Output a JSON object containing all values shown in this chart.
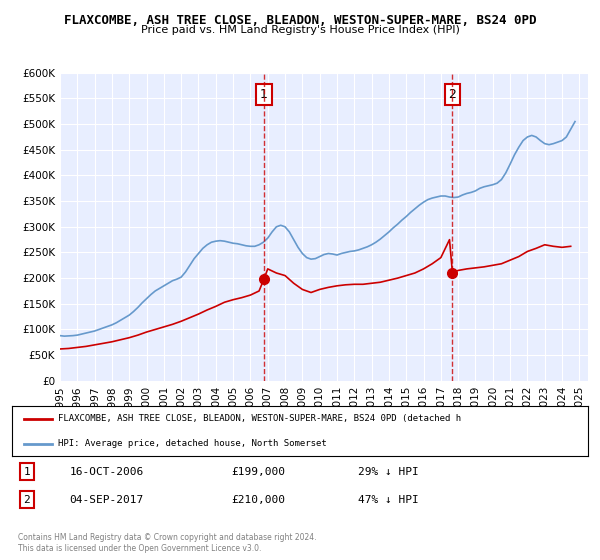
{
  "title": "FLAXCOMBE, ASH TREE CLOSE, BLEADON, WESTON-SUPER-MARE, BS24 0PD",
  "subtitle": "Price paid vs. HM Land Registry's House Price Index (HPI)",
  "background_color": "#f0f4ff",
  "plot_bg_color": "#e8eeff",
  "ylim": [
    0,
    600000
  ],
  "yticks": [
    0,
    50000,
    100000,
    150000,
    200000,
    250000,
    300000,
    350000,
    400000,
    450000,
    500000,
    550000,
    600000
  ],
  "ytick_labels": [
    "£0",
    "£50K",
    "£100K",
    "£150K",
    "£200K",
    "£250K",
    "£300K",
    "£350K",
    "£400K",
    "£450K",
    "£500K",
    "£550K",
    "£600K"
  ],
  "xlim_start": 1995.0,
  "xlim_end": 2025.5,
  "xticks": [
    1995,
    1996,
    1997,
    1998,
    1999,
    2000,
    2001,
    2002,
    2003,
    2004,
    2005,
    2006,
    2007,
    2008,
    2009,
    2010,
    2011,
    2012,
    2013,
    2014,
    2015,
    2016,
    2017,
    2018,
    2019,
    2020,
    2021,
    2022,
    2023,
    2024,
    2025
  ],
  "red_line_color": "#cc0000",
  "blue_line_color": "#6699cc",
  "marker1_x": 2006.79,
  "marker1_y": 199000,
  "marker2_x": 2017.67,
  "marker2_y": 210000,
  "vline1_x": 2006.79,
  "vline2_x": 2017.67,
  "legend_label_red": "FLAXCOMBE, ASH TREE CLOSE, BLEADON, WESTON-SUPER-MARE, BS24 0PD (detached h",
  "legend_label_blue": "HPI: Average price, detached house, North Somerset",
  "annotation1_num": "1",
  "annotation1_date": "16-OCT-2006",
  "annotation1_price": "£199,000",
  "annotation1_hpi": "29% ↓ HPI",
  "annotation2_num": "2",
  "annotation2_date": "04-SEP-2017",
  "annotation2_price": "£210,000",
  "annotation2_hpi": "47% ↓ HPI",
  "footer1": "Contains HM Land Registry data © Crown copyright and database right 2024.",
  "footer2": "This data is licensed under the Open Government Licence v3.0.",
  "hpi_data_x": [
    1995.0,
    1995.25,
    1995.5,
    1995.75,
    1996.0,
    1996.25,
    1996.5,
    1996.75,
    1997.0,
    1997.25,
    1997.5,
    1997.75,
    1998.0,
    1998.25,
    1998.5,
    1998.75,
    1999.0,
    1999.25,
    1999.5,
    1999.75,
    2000.0,
    2000.25,
    2000.5,
    2000.75,
    2001.0,
    2001.25,
    2001.5,
    2001.75,
    2002.0,
    2002.25,
    2002.5,
    2002.75,
    2003.0,
    2003.25,
    2003.5,
    2003.75,
    2004.0,
    2004.25,
    2004.5,
    2004.75,
    2005.0,
    2005.25,
    2005.5,
    2005.75,
    2006.0,
    2006.25,
    2006.5,
    2006.75,
    2007.0,
    2007.25,
    2007.5,
    2007.75,
    2008.0,
    2008.25,
    2008.5,
    2008.75,
    2009.0,
    2009.25,
    2009.5,
    2009.75,
    2010.0,
    2010.25,
    2010.5,
    2010.75,
    2011.0,
    2011.25,
    2011.5,
    2011.75,
    2012.0,
    2012.25,
    2012.5,
    2012.75,
    2013.0,
    2013.25,
    2013.5,
    2013.75,
    2014.0,
    2014.25,
    2014.5,
    2014.75,
    2015.0,
    2015.25,
    2015.5,
    2015.75,
    2016.0,
    2016.25,
    2016.5,
    2016.75,
    2017.0,
    2017.25,
    2017.5,
    2017.75,
    2018.0,
    2018.25,
    2018.5,
    2018.75,
    2019.0,
    2019.25,
    2019.5,
    2019.75,
    2020.0,
    2020.25,
    2020.5,
    2020.75,
    2021.0,
    2021.25,
    2021.5,
    2021.75,
    2022.0,
    2022.25,
    2022.5,
    2022.75,
    2023.0,
    2023.25,
    2023.5,
    2023.75,
    2024.0,
    2024.25,
    2024.5,
    2024.75
  ],
  "hpi_data_y": [
    88000,
    87000,
    87500,
    88000,
    89000,
    91000,
    93000,
    95000,
    97000,
    100000,
    103000,
    106000,
    109000,
    113000,
    118000,
    123000,
    128000,
    135000,
    143000,
    152000,
    160000,
    168000,
    175000,
    180000,
    185000,
    190000,
    195000,
    198000,
    202000,
    212000,
    225000,
    238000,
    248000,
    258000,
    265000,
    270000,
    272000,
    273000,
    272000,
    270000,
    268000,
    267000,
    265000,
    263000,
    262000,
    262000,
    265000,
    270000,
    278000,
    290000,
    300000,
    303000,
    300000,
    290000,
    275000,
    260000,
    248000,
    240000,
    237000,
    238000,
    242000,
    246000,
    248000,
    247000,
    245000,
    248000,
    250000,
    252000,
    253000,
    255000,
    258000,
    261000,
    265000,
    270000,
    276000,
    283000,
    290000,
    298000,
    305000,
    313000,
    320000,
    328000,
    335000,
    342000,
    348000,
    353000,
    356000,
    358000,
    360000,
    360000,
    358000,
    357000,
    358000,
    362000,
    365000,
    367000,
    370000,
    375000,
    378000,
    380000,
    382000,
    385000,
    392000,
    405000,
    422000,
    440000,
    455000,
    468000,
    475000,
    478000,
    475000,
    468000,
    462000,
    460000,
    462000,
    465000,
    468000,
    475000,
    490000,
    505000
  ],
  "red_data_x": [
    1995.0,
    1995.5,
    1996.0,
    1996.5,
    1997.0,
    1997.5,
    1998.0,
    1998.5,
    1999.0,
    1999.5,
    2000.0,
    2000.5,
    2001.0,
    2001.5,
    2002.0,
    2002.5,
    2003.0,
    2003.5,
    2004.0,
    2004.5,
    2005.0,
    2005.5,
    2006.0,
    2006.5,
    2006.79,
    2007.0,
    2007.5,
    2008.0,
    2008.5,
    2009.0,
    2009.5,
    2010.0,
    2010.5,
    2011.0,
    2011.5,
    2012.0,
    2012.5,
    2013.0,
    2013.5,
    2014.0,
    2014.5,
    2015.0,
    2015.5,
    2016.0,
    2016.5,
    2017.0,
    2017.5,
    2017.67,
    2018.0,
    2018.5,
    2019.0,
    2019.5,
    2020.0,
    2020.5,
    2021.0,
    2021.5,
    2022.0,
    2022.5,
    2023.0,
    2023.5,
    2024.0,
    2024.5
  ],
  "red_data_y": [
    62000,
    63000,
    65000,
    67000,
    70000,
    73000,
    76000,
    80000,
    84000,
    89000,
    95000,
    100000,
    105000,
    110000,
    116000,
    123000,
    130000,
    138000,
    145000,
    153000,
    158000,
    162000,
    167000,
    175000,
    199000,
    218000,
    210000,
    205000,
    190000,
    178000,
    172000,
    178000,
    182000,
    185000,
    187000,
    188000,
    188000,
    190000,
    192000,
    196000,
    200000,
    205000,
    210000,
    218000,
    228000,
    240000,
    275000,
    210000,
    215000,
    218000,
    220000,
    222000,
    225000,
    228000,
    235000,
    242000,
    252000,
    258000,
    265000,
    262000,
    260000,
    262000
  ]
}
